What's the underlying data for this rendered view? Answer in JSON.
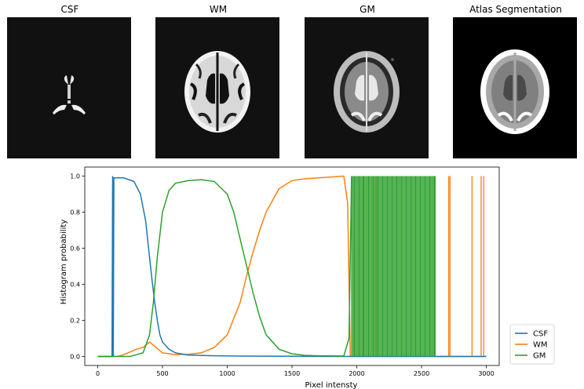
{
  "panels": [
    {
      "title": "CSF",
      "kind": "csf"
    },
    {
      "title": "WM",
      "kind": "wm"
    },
    {
      "title": "GM",
      "kind": "gm"
    },
    {
      "title": "Atlas Segmentation",
      "kind": "atlas"
    }
  ],
  "chart_data": {
    "type": "line",
    "title": "",
    "xlabel": "Pixel intensty",
    "ylabel": "Histogram probability",
    "xlim": [
      -100,
      3100
    ],
    "ylim": [
      -0.05,
      1.05
    ],
    "xticks": [
      0,
      500,
      1000,
      1500,
      2000,
      2500,
      3000
    ],
    "xtick_labels": [
      "0",
      "500",
      "1000",
      "1500",
      "2000",
      "2500",
      "3000"
    ],
    "yticks": [
      0.0,
      0.2,
      0.4,
      0.6,
      0.8,
      1.0
    ],
    "ytick_labels": [
      "0.0",
      "0.2",
      "0.4",
      "0.6",
      "0.8",
      "1.0"
    ],
    "legend_position": "outside-bottom-right",
    "series": [
      {
        "name": "CSF",
        "color": "#1f77b4",
        "x": [
          0,
          110,
          115,
          120,
          125,
          200,
          280,
          330,
          370,
          400,
          420,
          440,
          460,
          480,
          500,
          550,
          600,
          700,
          900,
          1100,
          1500,
          2000,
          3000
        ],
        "y": [
          0,
          0,
          1.0,
          0,
          0.99,
          0.99,
          0.97,
          0.9,
          0.75,
          0.55,
          0.42,
          0.3,
          0.2,
          0.12,
          0.08,
          0.04,
          0.02,
          0.008,
          0.004,
          0.002,
          0.001,
          0,
          0
        ]
      },
      {
        "name": "WM",
        "color": "#ff7f0e",
        "x": [
          0,
          150,
          200,
          300,
          350,
          400,
          450,
          500,
          600,
          700,
          800,
          900,
          1000,
          1100,
          1150,
          1200,
          1250,
          1300,
          1400,
          1500,
          1600,
          1700,
          1800,
          1900,
          1930,
          1950,
          3000
        ],
        "y": [
          0,
          0,
          0.01,
          0.04,
          0.05,
          0.08,
          0.05,
          0.02,
          0.01,
          0.012,
          0.02,
          0.05,
          0.12,
          0.3,
          0.45,
          0.58,
          0.7,
          0.8,
          0.93,
          0.975,
          0.985,
          0.99,
          0.995,
          1.0,
          0.85,
          0.0,
          0.0
        ],
        "spikes_x": [
          2050,
          2150,
          2600,
          2710,
          2720,
          2890,
          2960,
          2980
        ]
      },
      {
        "name": "GM",
        "color": "#2ca02c",
        "x": [
          0,
          150,
          250,
          300,
          350,
          400,
          430,
          460,
          500,
          550,
          600,
          700,
          800,
          900,
          1000,
          1050,
          1100,
          1150,
          1200,
          1250,
          1300,
          1400,
          1500,
          1600,
          1700,
          1800,
          1900,
          1940,
          1960
        ],
        "y": [
          0,
          0,
          0.0,
          0.01,
          0.02,
          0.12,
          0.3,
          0.55,
          0.8,
          0.92,
          0.96,
          0.975,
          0.98,
          0.97,
          0.9,
          0.8,
          0.65,
          0.5,
          0.35,
          0.22,
          0.12,
          0.04,
          0.015,
          0.006,
          0.004,
          0.003,
          0.002,
          0.1,
          1.0
        ],
        "band_x": [
          1960,
          2610
        ]
      }
    ]
  }
}
